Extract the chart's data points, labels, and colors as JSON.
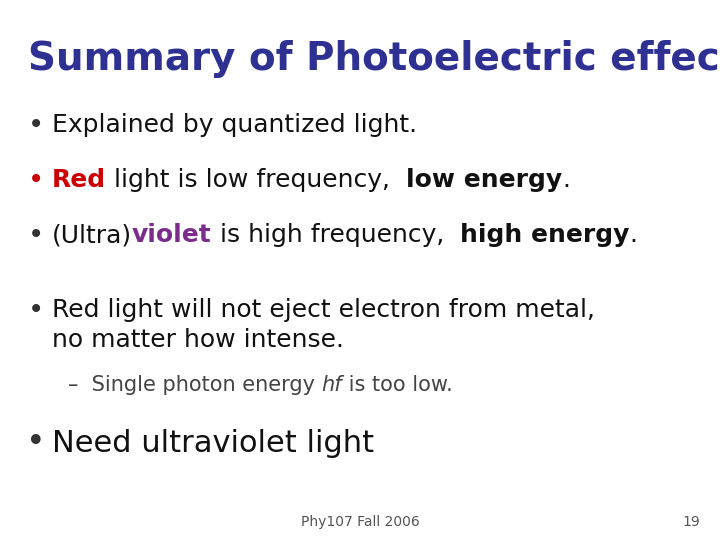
{
  "title": "Summary of Photoelectric effect",
  "title_color": "#2E3192",
  "title_fontsize": 28,
  "background_color": "#FFFFFF",
  "footer_text": "Phy107 Fall 2006",
  "footer_page": "19",
  "figsize": [
    7.2,
    5.4
  ],
  "dpi": 100
}
